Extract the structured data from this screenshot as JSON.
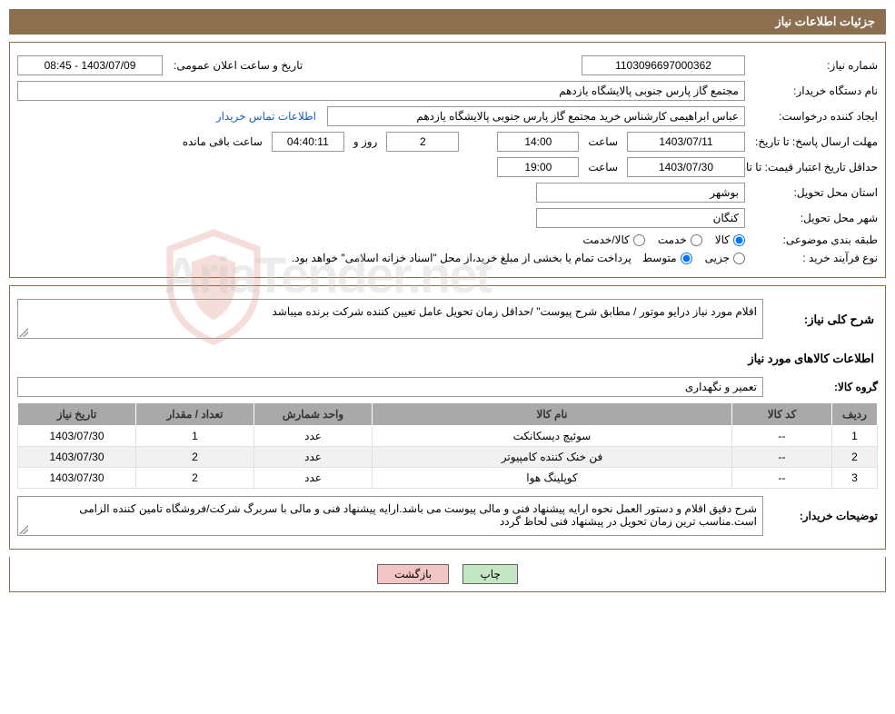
{
  "header": {
    "title": "جزئیات اطلاعات نیاز"
  },
  "fields": {
    "need_number": {
      "label": "شماره نیاز:",
      "value": "1103096697000362"
    },
    "announce_datetime": {
      "label": "تاریخ و ساعت اعلان عمومی:",
      "value": "1403/07/09 - 08:45"
    },
    "buyer_device": {
      "label": "نام دستگاه خریدار:",
      "value": "مجتمع گاز پارس جنوبی  پالایشگاه یازدهم"
    },
    "requester": {
      "label": "ایجاد کننده درخواست:",
      "value": "عباس ابراهیمی کارشناس خرید مجتمع گاز پارس جنوبی  پالایشگاه یازدهم"
    },
    "contact_link": "اطلاعات تماس خریدار",
    "response_deadline": {
      "label": "مهلت ارسال پاسخ:  تا تاریخ:",
      "date": "1403/07/11",
      "time_label": "ساعت",
      "time": "14:00",
      "days": "2",
      "days_label": "روز و",
      "remain": "04:40:11",
      "remain_label": "ساعت باقی مانده"
    },
    "price_validity": {
      "label": "حداقل تاریخ اعتبار قیمت:  تا تاریخ:",
      "date": "1403/07/30",
      "time_label": "ساعت",
      "time": "19:00"
    },
    "province": {
      "label": "استان محل تحویل:",
      "value": "بوشهر"
    },
    "city": {
      "label": "شهر محل تحویل:",
      "value": "کنگان"
    },
    "category": {
      "label": "طبقه بندی موضوعی:",
      "options": [
        "کالا",
        "خدمت",
        "کالا/خدمت"
      ],
      "selected": 0
    },
    "process_type": {
      "label": "نوع فرآیند خرید :",
      "options": [
        "جزیی",
        "متوسط"
      ],
      "selected": 1,
      "note": "پرداخت تمام یا بخشی از مبلغ خرید،از محل \"اسناد خزانه اسلامی\" خواهد بود."
    }
  },
  "need_desc": {
    "label": "شرح کلی نیاز:",
    "value": " اقلام مورد نیاز درایو موتور / مطابق شرح پیوست\" /حداقل زمان تحویل عامل تعیین کننده شرکت برنده میباشد"
  },
  "goods_info_header": "اطلاعات کالاهای مورد نیاز",
  "goods_group": {
    "label": "گروه کالا:",
    "value": "تعمیر و نگهداری"
  },
  "table": {
    "columns": [
      "ردیف",
      "کد کالا",
      "نام کالا",
      "واحد شمارش",
      "تعداد / مقدار",
      "تاریخ نیاز"
    ],
    "col_widths": [
      "50px",
      "110px",
      "auto",
      "130px",
      "130px",
      "130px"
    ],
    "rows": [
      [
        "1",
        "--",
        "سوئیچ دیسکانکت",
        "عدد",
        "1",
        "1403/07/30"
      ],
      [
        "2",
        "--",
        "فن خنک کننده کامپیوتر",
        "عدد",
        "2",
        "1403/07/30"
      ],
      [
        "3",
        "--",
        "کوپلینگ هوا",
        "عدد",
        "2",
        "1403/07/30"
      ]
    ]
  },
  "buyer_notes": {
    "label": "توضیحات خریدار:",
    "value": "شرح دقیق اقلام و دستور العمل نحوه ارایه پیشنهاد فنی و مالی پیوست می باشد.ارایه پیشنهاد فنی و مالی با سربرگ شرکت/فروشگاه تامین کننده الزامی است.مناسب ترین زمان تحویل در پیشنهاد فنی لحاظ گردد"
  },
  "buttons": {
    "print": "چاپ",
    "back": "بازگشت"
  },
  "watermark": "AriaTender.net",
  "colors": {
    "brand": "#8b6f4e",
    "th_bg": "#a9a9a9",
    "btn_print": "#c4e8c4",
    "btn_back": "#f2c4c4"
  }
}
